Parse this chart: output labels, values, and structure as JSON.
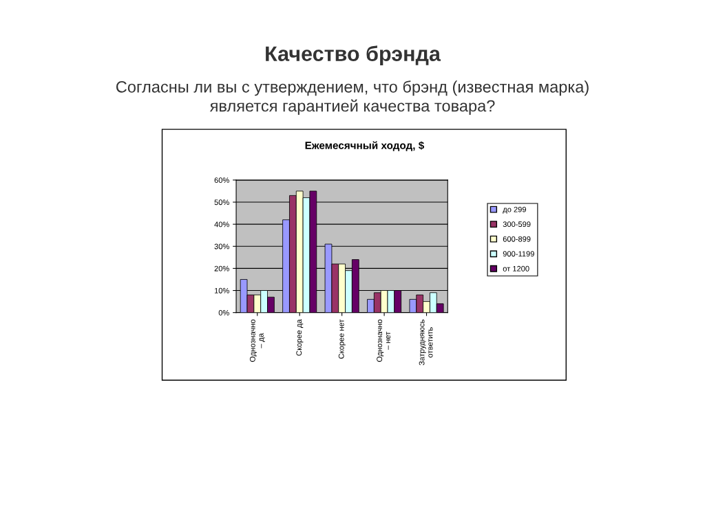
{
  "chart_data": {
    "type": "bar",
    "title": "Качество брэнда",
    "subtitle": "Согласны ли вы с утверждением, что брэнд (известная марка)\nявляется гарантией качества товара?",
    "annotations": [
      "Ежемесячный ходод, $"
    ],
    "categories": [
      "Однозначно\n– да",
      "Скорее да",
      "Скорее нет",
      "Однозначно\n– нет",
      "Затрудняюсь\nответить"
    ],
    "series": [
      {
        "name": "до 299",
        "color": "#9999ff",
        "values": [
          15,
          42,
          31,
          6,
          6
        ]
      },
      {
        "name": "300-599",
        "color": "#993366",
        "values": [
          8,
          53,
          22,
          9,
          8
        ]
      },
      {
        "name": "600-899",
        "color": "#ffffcc",
        "values": [
          8,
          55,
          22,
          10,
          5
        ]
      },
      {
        "name": "900-1199",
        "color": "#ccffff",
        "values": [
          10,
          52,
          19,
          10,
          9
        ]
      },
      {
        "name": "от 1200",
        "color": "#660066",
        "values": [
          7,
          55,
          24,
          10,
          4
        ]
      }
    ],
    "ylim": [
      0,
      60
    ],
    "yticks": [
      {
        "value": 0,
        "label": "0%"
      },
      {
        "value": 10,
        "label": "10%"
      },
      {
        "value": 20,
        "label": "20%"
      },
      {
        "value": 30,
        "label": "30%"
      },
      {
        "value": 40,
        "label": "40%"
      },
      {
        "value": 50,
        "label": "50%"
      },
      {
        "value": 60,
        "label": "60%"
      }
    ],
    "grid": "y",
    "legend": "right"
  }
}
